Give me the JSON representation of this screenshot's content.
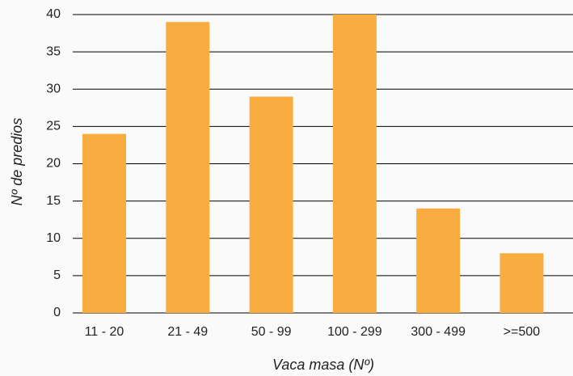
{
  "chart_data": {
    "type": "bar",
    "categories": [
      "11 - 20",
      "21 - 49",
      "50 - 99",
      "100 - 299",
      "300 - 499",
      ">=500"
    ],
    "values": [
      24,
      39,
      29,
      40,
      14,
      8
    ],
    "color": "#f9ac3f",
    "x_label": "Vaca masa (Nº)",
    "y_label": "Nº de predios",
    "ylim": [
      0,
      40
    ],
    "yticks": [
      0,
      5,
      10,
      15,
      20,
      25,
      30,
      35,
      40
    ],
    "grid": true
  }
}
